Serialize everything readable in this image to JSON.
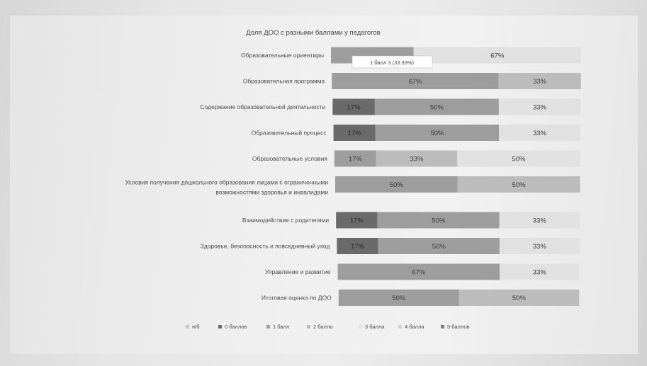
{
  "chart_data": {
    "type": "bar",
    "stacked": "percent",
    "orientation": "horizontal",
    "title": "Доля ДОО с разными баллами у педагогов",
    "categories": [
      "Образовательные ориентиры",
      "Образовательная программа",
      "Содержание образовательной деятельности",
      "Образовательный процесс",
      "Образовательные условия",
      "Условия получения дошкольного образования лицами с ограниченными возможностями здоровья и инвалидами",
      "Взаимодействие с родителями",
      "Здоровье, безопасность и повседневный уход",
      "Управление и развитие",
      "Итоговая оценка по ДОО"
    ],
    "legend": [
      "н/б",
      "0 баллов",
      "1 балл",
      "2 балла",
      "3 балла",
      "4 балла",
      "5 баллов"
    ],
    "legend_position": "bottom",
    "series": [
      {
        "name": "н/б",
        "values": [
          0,
          0,
          0,
          0,
          0,
          0,
          0,
          0,
          0,
          0
        ],
        "labels": [
          "",
          "",
          "",
          "",
          "",
          "",
          "",
          "",
          "",
          ""
        ]
      },
      {
        "name": "0 баллов",
        "values": [
          0,
          0,
          17,
          17,
          0,
          0,
          17,
          17,
          0,
          0
        ],
        "labels": [
          "",
          "",
          "17%",
          "17%",
          "",
          "",
          "17%",
          "17%",
          "",
          ""
        ]
      },
      {
        "name": "1 балл",
        "values": [
          33,
          67,
          50,
          50,
          17,
          50,
          50,
          50,
          67,
          50
        ],
        "labels": [
          "",
          "67%",
          "50%",
          "50%",
          "17%",
          "50%",
          "50%",
          "50%",
          "67%",
          "50%"
        ]
      },
      {
        "name": "2 балла",
        "values": [
          0,
          33,
          0,
          0,
          33,
          50,
          0,
          0,
          0,
          50
        ],
        "labels": [
          "",
          "33%",
          "",
          "",
          "33%",
          "50%",
          "",
          "",
          "",
          "50%"
        ]
      },
      {
        "name": "3 балла",
        "values": [
          67,
          0,
          33,
          33,
          50,
          0,
          33,
          33,
          33,
          0
        ],
        "labels": [
          "67%",
          "",
          "33%",
          "33%",
          "50%",
          "",
          "33%",
          "33%",
          "33%",
          ""
        ]
      },
      {
        "name": "4 балла",
        "values": [
          0,
          0,
          0,
          0,
          0,
          0,
          0,
          0,
          0,
          0
        ],
        "labels": [
          "",
          "",
          "",
          "",
          "",
          "",
          "",
          "",
          "",
          ""
        ]
      },
      {
        "name": "5 баллов",
        "values": [
          0,
          0,
          0,
          0,
          0,
          0,
          0,
          0,
          0,
          0
        ],
        "labels": [
          "",
          "",
          "",
          "",
          "",
          "",
          "",
          "",
          "",
          ""
        ]
      }
    ],
    "colors": [
      "#c4c4c4",
      "#6a6a6a",
      "#9d9d9d",
      "#bcbcbc",
      "#e1e1e1",
      "#d3d3d3",
      "#7e7e7e"
    ],
    "tooltip": "1 балл 3 (33.33%)",
    "xlim": [
      0,
      100
    ],
    "grid": false
  }
}
